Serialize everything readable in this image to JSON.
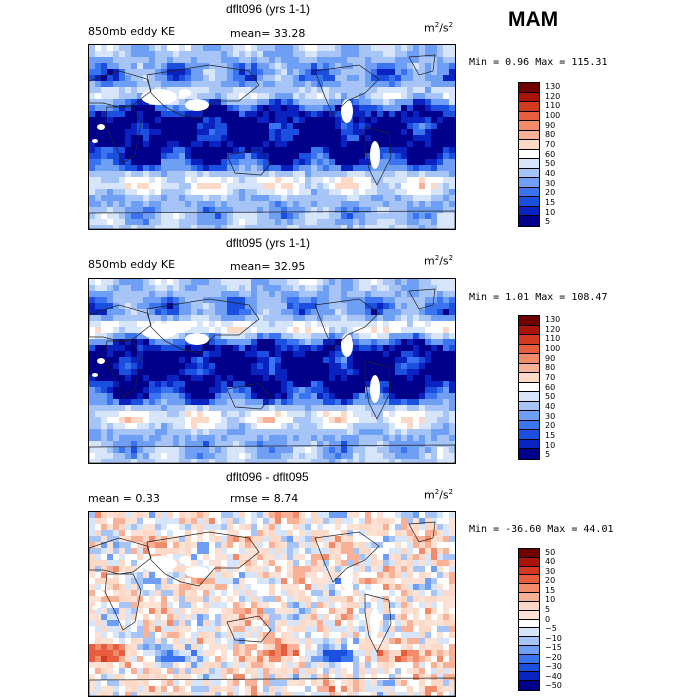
{
  "season": "MAM",
  "colors": {
    "land": "#ffffff",
    "outline": "#222222",
    "ke_palette": [
      "#00008b",
      "#0a23c0",
      "#1a4fe0",
      "#3a74f0",
      "#6f9ef5",
      "#a7c4f7",
      "#d7e5fa",
      "#ffffff",
      "#fcd9c6",
      "#f8b196",
      "#f28b6a",
      "#e85d3d",
      "#d23a1f",
      "#a81408",
      "#6e0000"
    ],
    "diff_palette": [
      "#00008b",
      "#0a23c0",
      "#1a4fe0",
      "#3a74f0",
      "#6f9ef5",
      "#a7c4f7",
      "#d7e5fa",
      "#ffffff",
      "#fce2d4",
      "#fcd9c6",
      "#f8b196",
      "#f28b6a",
      "#e85d3d",
      "#d23a1f",
      "#a81408",
      "#6e0000"
    ]
  },
  "panels": [
    {
      "title": "dflt096 (yrs 1-1)",
      "left_label": "850mb eddy KE",
      "center_label": "mean=  33.28",
      "units_base": "m",
      "units_sup1": "2",
      "units_mid": "/s",
      "units_sup2": "2",
      "minmax": "Min =   0.96 Max = 115.31",
      "colorbar_labels": [
        "130",
        "120",
        "110",
        "100",
        "90",
        "80",
        "70",
        "60",
        "50",
        "40",
        "30",
        "20",
        "15",
        "10",
        "5"
      ]
    },
    {
      "title": "dflt095 (yrs 1-1)",
      "left_label": "850mb eddy KE",
      "center_label": "mean=  32.95",
      "units_base": "m",
      "units_sup1": "2",
      "units_mid": "/s",
      "units_sup2": "2",
      "minmax": "Min =   1.01 Max = 108.47",
      "colorbar_labels": [
        "130",
        "120",
        "110",
        "100",
        "90",
        "80",
        "70",
        "60",
        "50",
        "40",
        "30",
        "20",
        "15",
        "10",
        "5"
      ]
    },
    {
      "title": "dflt096 - dflt095",
      "left_label": "mean =   0.33",
      "center_label": "rmse =   8.74",
      "units_base": "m",
      "units_sup1": "2",
      "units_mid": "/s",
      "units_sup2": "2",
      "minmax": "Min = -36.60 Max =  44.01",
      "colorbar_labels": [
        "50",
        "40",
        "30",
        "20",
        "15",
        "10",
        "5",
        "0",
        "−5",
        "−10",
        "−15",
        "−20",
        "−30",
        "−40",
        "−50"
      ]
    }
  ],
  "chart_data": [
    {
      "type": "heatmap",
      "title": "dflt096 (yrs 1-1)",
      "variable": "850mb eddy KE",
      "units": "m2/s2",
      "mean": 33.28,
      "min": 0.96,
      "max": 115.31,
      "contour_levels": [
        5,
        10,
        15,
        20,
        30,
        40,
        50,
        60,
        70,
        80,
        90,
        100,
        110,
        120,
        130
      ]
    },
    {
      "type": "heatmap",
      "title": "dflt095 (yrs 1-1)",
      "variable": "850mb eddy KE",
      "units": "m2/s2",
      "mean": 32.95,
      "min": 1.01,
      "max": 108.47,
      "contour_levels": [
        5,
        10,
        15,
        20,
        30,
        40,
        50,
        60,
        70,
        80,
        90,
        100,
        110,
        120,
        130
      ]
    },
    {
      "type": "heatmap",
      "title": "dflt096 - dflt095",
      "units": "m2/s2",
      "mean": 0.33,
      "rmse": 8.74,
      "min": -36.6,
      "max": 44.01,
      "contour_levels": [
        -50,
        -40,
        -30,
        -20,
        -15,
        -10,
        -5,
        0,
        5,
        10,
        15,
        20,
        30,
        40,
        50
      ]
    }
  ]
}
